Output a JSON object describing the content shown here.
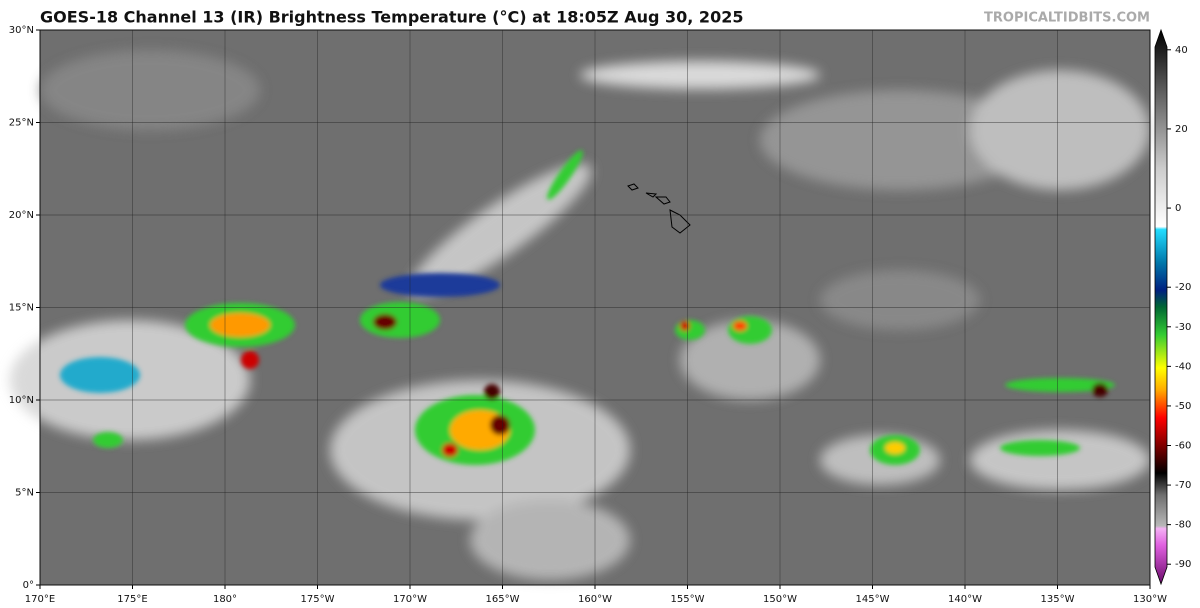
{
  "header": {
    "title": "GOES-18 Channel 13 (IR) Brightness Temperature (°C) at 18:05Z Aug 30, 2025",
    "credit": "TROPICALTIDBITS.COM"
  },
  "map": {
    "lon_labels": [
      "170°E",
      "175°E",
      "180°",
      "175°W",
      "170°W",
      "165°W",
      "160°W",
      "155°W",
      "150°W",
      "145°W",
      "140°W",
      "135°W",
      "130°W"
    ],
    "lat_labels": [
      "30°N",
      "25°N",
      "20°N",
      "15°N",
      "10°N",
      "5°N",
      "0°"
    ]
  },
  "colorbar": {
    "range": [
      -95,
      45
    ],
    "ticks": [
      40,
      20,
      0,
      -20,
      -30,
      -40,
      -50,
      -60,
      -70,
      -80,
      -90
    ]
  }
}
